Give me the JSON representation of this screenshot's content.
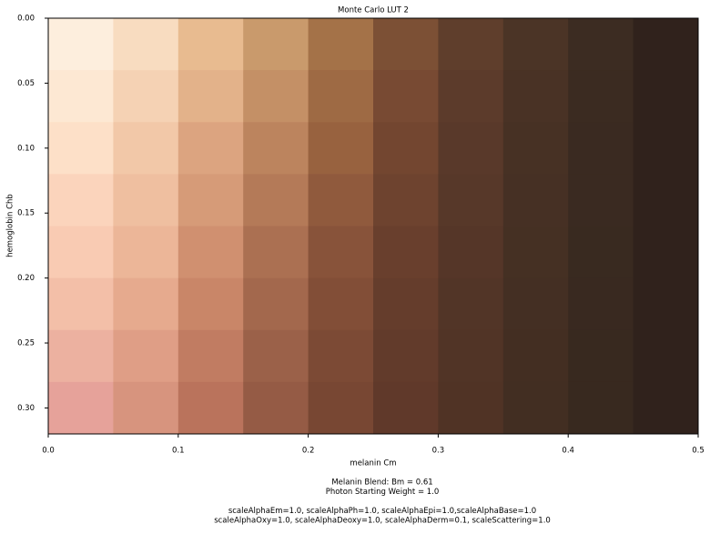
{
  "chart_data": {
    "type": "heatmap",
    "title": "Monte Carlo LUT 2",
    "x_label": "melanin Cm",
    "y_label": "hemoglobin Chb",
    "xlim": [
      0,
      0.5
    ],
    "ylim": [
      0,
      0.32
    ],
    "y_inverted": true,
    "xticks": [
      {
        "value": 0,
        "label": "0.0"
      },
      0.1,
      0.2,
      0.3,
      0.4,
      0.5
    ],
    "yticks": [
      {
        "value": 0,
        "label": "0.00"
      },
      0.05,
      {
        "value": 0.1,
        "label": "0.10"
      },
      0.15,
      {
        "value": 0.2,
        "label": "0.20"
      },
      0.25,
      {
        "value": 0.3,
        "label": "0.30"
      }
    ],
    "cell_colors": [
      [
        "#fdeedd",
        "#f8dcc0",
        "#e8bb90",
        "#c99a6c",
        "#a47248",
        "#7c5035",
        "#5f3e2c",
        "#4b3426",
        "#3c2c22",
        "#30221c"
      ],
      [
        "#fde8d3",
        "#f5d2b4",
        "#e3b28a",
        "#c49066",
        "#9e6a44",
        "#784a33",
        "#5c3b2b",
        "#493225",
        "#3b2b21",
        "#30221c"
      ],
      [
        "#fde0c8",
        "#f2c8a8",
        "#dca480",
        "#bc845e",
        "#98623f",
        "#734630",
        "#59392a",
        "#473124",
        "#3a2a21",
        "#30221c"
      ],
      [
        "#fbd4bc",
        "#efbfa0",
        "#d69b78",
        "#b47a58",
        "#905a3d",
        "#6e432f",
        "#573829",
        "#463024",
        "#3a2a21",
        "#30221c"
      ],
      [
        "#f9cbb3",
        "#ecb698",
        "#d09070",
        "#ab7052",
        "#88533a",
        "#693f2d",
        "#553628",
        "#453023",
        "#392a20",
        "#30221c"
      ],
      [
        "#f3bfa8",
        "#e6aa8e",
        "#c98668",
        "#a3684d",
        "#824e37",
        "#653d2c",
        "#523527",
        "#442f23",
        "#392920",
        "#30221c"
      ],
      [
        "#ecb1a0",
        "#df9e86",
        "#c17c62",
        "#9b6149",
        "#7c4a35",
        "#623b2b",
        "#513426",
        "#432e22",
        "#38291f",
        "#30221c"
      ],
      [
        "#e6a29a",
        "#d7947e",
        "#ba735c",
        "#955b45",
        "#784733",
        "#60392a",
        "#503325",
        "#422e22",
        "#38291f",
        "#30221c"
      ]
    ],
    "caption": [
      [
        "Melanin Blend: Bm = 0.61",
        "Photon Starting Weight = 1.0"
      ],
      [
        "scaleAlphaEm=1.0, scaleAlphaPh=1.0, scaleAlphaEpi=1.0,scaleAlphaBase=1.0",
        "scaleAlphaOxy=1.0, scaleAlphaDeoxy=1.0, scaleAlphaDerm=0.1, scaleScattering=1.0"
      ]
    ]
  }
}
